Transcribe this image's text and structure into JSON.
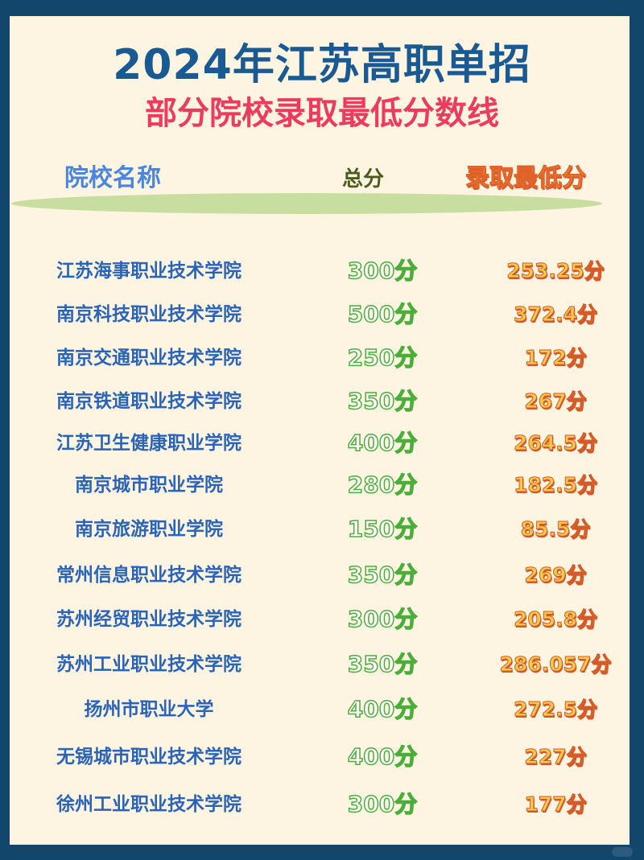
{
  "title": "2024年江苏高职单招",
  "subtitle": "部分院校录取最低分数线",
  "headers": {
    "name": "院校名称",
    "total": "总分",
    "min": "录取最低分"
  },
  "colors": {
    "border": "#13466b",
    "background": "#fdf5e2",
    "title": "#1a5a93",
    "subtitle": "#ec3b5c",
    "school": "#2a64b8",
    "total": "#4cae3a",
    "min": "#f7c84e"
  },
  "rows": [
    {
      "name": "江苏海事职业技术学院",
      "total": "300分",
      "min": "253.25分"
    },
    {
      "name": "南京科技职业技术学院",
      "total": "500分",
      "min": "372.4分"
    },
    {
      "name": "南京交通职业技术学院",
      "total": "250分",
      "min": "172分"
    },
    {
      "name": "南京铁道职业技术学院",
      "total": "350分",
      "min": "267分"
    },
    {
      "name": "江苏卫生健康职业学院",
      "total": "400分",
      "min": "264.5分"
    },
    {
      "name": "南京城市职业学院",
      "total": "280分",
      "min": "182.5分"
    },
    {
      "name": "南京旅游职业学院",
      "total": "150分",
      "min": "85.5分"
    },
    {
      "name": "常州信息职业技术学院",
      "total": "350分",
      "min": "269分"
    },
    {
      "name": "苏州经贸职业技术学院",
      "total": "300分",
      "min": "205.8分"
    },
    {
      "name": "苏州工业职业技术学院",
      "total": "350分",
      "min": "286.057分"
    },
    {
      "name": "扬州市职业大学",
      "total": "400分",
      "min": "272.5分"
    },
    {
      "name": "无锡城市职业技术学院",
      "total": "400分",
      "min": "227分"
    },
    {
      "name": "徐州工业职业技术学院",
      "total": "300分",
      "min": "177分"
    }
  ]
}
